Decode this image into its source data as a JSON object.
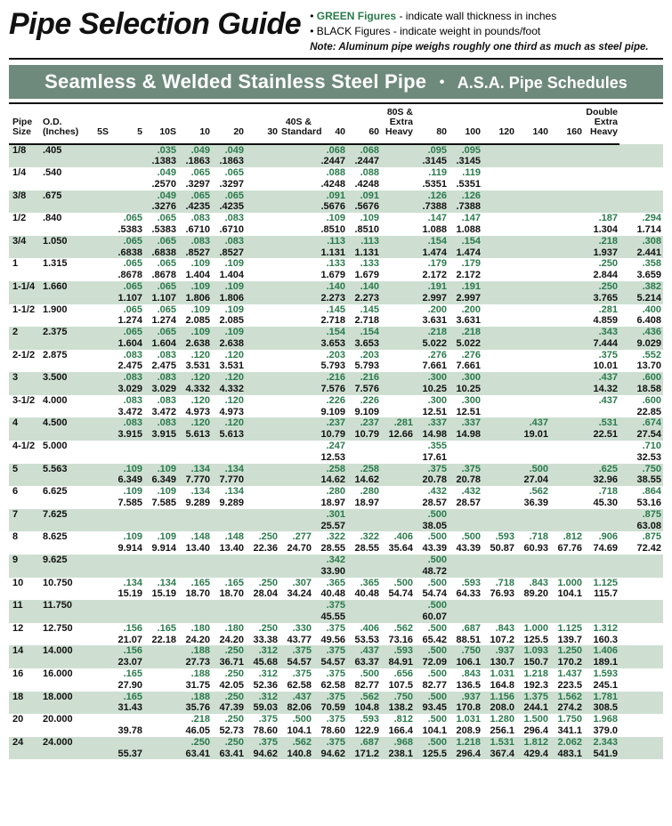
{
  "header": {
    "title": "Pipe Selection Guide",
    "bullet1_green": "GREEN Figures",
    "bullet1_rest": " - indicate wall thickness in inches",
    "bullet2_black": "BLACK Figures",
    "bullet2_rest": " - indicate weight in pounds/foot",
    "note_label": "Note:",
    "note_text": " Aluminum pipe weighs roughly one third as much as steel pipe."
  },
  "band": {
    "main": "Seamless & Welded Stainless Steel Pipe",
    "sub": "A.S.A. Pipe Schedules"
  },
  "columns": [
    "Pipe\nSize",
    "O.D.\n(Inches)",
    "5S",
    "5",
    "10S",
    "10",
    "20",
    "30",
    "40S &\nStandard",
    "40",
    "60",
    "80S &\nExtra\nHeavy",
    "80",
    "100",
    "120",
    "140",
    "160",
    "Double\nExtra\nHeavy"
  ],
  "rows": [
    {
      "size": "1/8",
      "od": ".405",
      "thk": [
        "",
        "",
        ".035",
        ".049",
        ".049",
        "",
        "",
        ".068",
        ".068",
        "",
        ".095",
        ".095",
        "",
        "",
        "",
        "",
        ""
      ],
      "wgt": [
        "",
        "",
        ".1383",
        ".1863",
        ".1863",
        "",
        "",
        ".2447",
        ".2447",
        "",
        ".3145",
        ".3145",
        "",
        "",
        "",
        "",
        ""
      ]
    },
    {
      "size": "1/4",
      "od": ".540",
      "thk": [
        "",
        "",
        ".049",
        ".065",
        ".065",
        "",
        "",
        ".088",
        ".088",
        "",
        ".119",
        ".119",
        "",
        "",
        "",
        "",
        ""
      ],
      "wgt": [
        "",
        "",
        ".2570",
        ".3297",
        ".3297",
        "",
        "",
        ".4248",
        ".4248",
        "",
        ".5351",
        ".5351",
        "",
        "",
        "",
        "",
        ""
      ]
    },
    {
      "size": "3/8",
      "od": ".675",
      "thk": [
        "",
        "",
        ".049",
        ".065",
        ".065",
        "",
        "",
        ".091",
        ".091",
        "",
        ".126",
        ".126",
        "",
        "",
        "",
        "",
        ""
      ],
      "wgt": [
        "",
        "",
        ".3276",
        ".4235",
        ".4235",
        "",
        "",
        ".5676",
        ".5676",
        "",
        ".7388",
        ".7388",
        "",
        "",
        "",
        "",
        ""
      ]
    },
    {
      "size": "1/2",
      "od": ".840",
      "thk": [
        "",
        ".065",
        ".065",
        ".083",
        ".083",
        "",
        "",
        ".109",
        ".109",
        "",
        ".147",
        ".147",
        "",
        "",
        "",
        ".187",
        ".294"
      ],
      "wgt": [
        "",
        ".5383",
        ".5383",
        ".6710",
        ".6710",
        "",
        "",
        ".8510",
        ".8510",
        "",
        "1.088",
        "1.088",
        "",
        "",
        "",
        "1.304",
        "1.714"
      ]
    },
    {
      "size": "3/4",
      "od": "1.050",
      "thk": [
        "",
        ".065",
        ".065",
        ".083",
        ".083",
        "",
        "",
        ".113",
        ".113",
        "",
        ".154",
        ".154",
        "",
        "",
        "",
        ".218",
        ".308"
      ],
      "wgt": [
        "",
        ".6838",
        ".6838",
        ".8527",
        ".8527",
        "",
        "",
        "1.131",
        "1.131",
        "",
        "1.474",
        "1.474",
        "",
        "",
        "",
        "1.937",
        "2.441"
      ]
    },
    {
      "size": "1",
      "od": "1.315",
      "thk": [
        "",
        ".065",
        ".065",
        ".109",
        ".109",
        "",
        "",
        ".133",
        ".133",
        "",
        ".179",
        ".179",
        "",
        "",
        "",
        ".250",
        ".358"
      ],
      "wgt": [
        "",
        ".8678",
        ".8678",
        "1.404",
        "1.404",
        "",
        "",
        "1.679",
        "1.679",
        "",
        "2.172",
        "2.172",
        "",
        "",
        "",
        "2.844",
        "3.659"
      ]
    },
    {
      "size": "1-1/4",
      "od": "1.660",
      "thk": [
        "",
        ".065",
        ".065",
        ".109",
        ".109",
        "",
        "",
        ".140",
        ".140",
        "",
        ".191",
        ".191",
        "",
        "",
        "",
        ".250",
        ".382"
      ],
      "wgt": [
        "",
        "1.107",
        "1.107",
        "1.806",
        "1.806",
        "",
        "",
        "2.273",
        "2.273",
        "",
        "2.997",
        "2.997",
        "",
        "",
        "",
        "3.765",
        "5.214"
      ]
    },
    {
      "size": "1-1/2",
      "od": "1.900",
      "thk": [
        "",
        ".065",
        ".065",
        ".109",
        ".109",
        "",
        "",
        ".145",
        ".145",
        "",
        ".200",
        ".200",
        "",
        "",
        "",
        ".281",
        ".400"
      ],
      "wgt": [
        "",
        "1.274",
        "1.274",
        "2.085",
        "2.085",
        "",
        "",
        "2.718",
        "2.718",
        "",
        "3.631",
        "3.631",
        "",
        "",
        "",
        "4.859",
        "6.408"
      ]
    },
    {
      "size": "2",
      "od": "2.375",
      "thk": [
        "",
        ".065",
        ".065",
        ".109",
        ".109",
        "",
        "",
        ".154",
        ".154",
        "",
        ".218",
        ".218",
        "",
        "",
        "",
        ".343",
        ".436"
      ],
      "wgt": [
        "",
        "1.604",
        "1.604",
        "2.638",
        "2.638",
        "",
        "",
        "3.653",
        "3.653",
        "",
        "5.022",
        "5.022",
        "",
        "",
        "",
        "7.444",
        "9.029"
      ]
    },
    {
      "size": "2-1/2",
      "od": "2.875",
      "thk": [
        "",
        ".083",
        ".083",
        ".120",
        ".120",
        "",
        "",
        ".203",
        ".203",
        "",
        ".276",
        ".276",
        "",
        "",
        "",
        ".375",
        ".552"
      ],
      "wgt": [
        "",
        "2.475",
        "2.475",
        "3.531",
        "3.531",
        "",
        "",
        "5.793",
        "5.793",
        "",
        "7.661",
        "7.661",
        "",
        "",
        "",
        "10.01",
        "13.70"
      ]
    },
    {
      "size": "3",
      "od": "3.500",
      "thk": [
        "",
        ".083",
        ".083",
        ".120",
        ".120",
        "",
        "",
        ".216",
        ".216",
        "",
        ".300",
        ".300",
        "",
        "",
        "",
        ".437",
        ".600"
      ],
      "wgt": [
        "",
        "3.029",
        "3.029",
        "4.332",
        "4.332",
        "",
        "",
        "7.576",
        "7.576",
        "",
        "10.25",
        "10.25",
        "",
        "",
        "",
        "14.32",
        "18.58"
      ]
    },
    {
      "size": "3-1/2",
      "od": "4.000",
      "thk": [
        "",
        ".083",
        ".083",
        ".120",
        ".120",
        "",
        "",
        ".226",
        ".226",
        "",
        ".300",
        ".300",
        "",
        "",
        "",
        ".437",
        ".600"
      ],
      "wgt": [
        "",
        "3.472",
        "3.472",
        "4.973",
        "4.973",
        "",
        "",
        "9.109",
        "9.109",
        "",
        "12.51",
        "12.51",
        "",
        "",
        "",
        "",
        "22.85"
      ]
    },
    {
      "size": "4",
      "od": "4.500",
      "thk": [
        "",
        ".083",
        ".083",
        ".120",
        ".120",
        "",
        "",
        ".237",
        ".237",
        ".281",
        ".337",
        ".337",
        "",
        ".437",
        "",
        ".531",
        ".674"
      ],
      "wgt": [
        "",
        "3.915",
        "3.915",
        "5.613",
        "5.613",
        "",
        "",
        "10.79",
        "10.79",
        "12.66",
        "14.98",
        "14.98",
        "",
        "19.01",
        "",
        "22.51",
        "27.54"
      ]
    },
    {
      "size": "4-1/2",
      "od": "5.000",
      "thk": [
        "",
        "",
        "",
        "",
        "",
        "",
        "",
        ".247",
        "",
        "",
        ".355",
        "",
        "",
        "",
        "",
        "",
        ".710"
      ],
      "wgt": [
        "",
        "",
        "",
        "",
        "",
        "",
        "",
        "12.53",
        "",
        "",
        "17.61",
        "",
        "",
        "",
        "",
        "",
        "32.53"
      ]
    },
    {
      "size": "5",
      "od": "5.563",
      "thk": [
        "",
        ".109",
        ".109",
        ".134",
        ".134",
        "",
        "",
        ".258",
        ".258",
        "",
        ".375",
        ".375",
        "",
        ".500",
        "",
        ".625",
        ".750"
      ],
      "wgt": [
        "",
        "6.349",
        "6.349",
        "7.770",
        "7.770",
        "",
        "",
        "14.62",
        "14.62",
        "",
        "20.78",
        "20.78",
        "",
        "27.04",
        "",
        "32.96",
        "38.55"
      ]
    },
    {
      "size": "6",
      "od": "6.625",
      "thk": [
        "",
        ".109",
        ".109",
        ".134",
        ".134",
        "",
        "",
        ".280",
        ".280",
        "",
        ".432",
        ".432",
        "",
        ".562",
        "",
        ".718",
        ".864"
      ],
      "wgt": [
        "",
        "7.585",
        "7.585",
        "9.289",
        "9.289",
        "",
        "",
        "18.97",
        "18.97",
        "",
        "28.57",
        "28.57",
        "",
        "36.39",
        "",
        "45.30",
        "53.16"
      ]
    },
    {
      "size": "7",
      "od": "7.625",
      "thk": [
        "",
        "",
        "",
        "",
        "",
        "",
        "",
        ".301",
        "",
        "",
        ".500",
        "",
        "",
        "",
        "",
        "",
        ".875"
      ],
      "wgt": [
        "",
        "",
        "",
        "",
        "",
        "",
        "",
        "25.57",
        "",
        "",
        "38.05",
        "",
        "",
        "",
        "",
        "",
        "63.08"
      ]
    },
    {
      "size": "8",
      "od": "8.625",
      "thk": [
        "",
        ".109",
        ".109",
        ".148",
        ".148",
        ".250",
        ".277",
        ".322",
        ".322",
        ".406",
        ".500",
        ".500",
        ".593",
        ".718",
        ".812",
        ".906",
        ".875"
      ],
      "wgt": [
        "",
        "9.914",
        "9.914",
        "13.40",
        "13.40",
        "22.36",
        "24.70",
        "28.55",
        "28.55",
        "35.64",
        "43.39",
        "43.39",
        "50.87",
        "60.93",
        "67.76",
        "74.69",
        "72.42"
      ]
    },
    {
      "size": "9",
      "od": "9.625",
      "thk": [
        "",
        "",
        "",
        "",
        "",
        "",
        "",
        ".342",
        "",
        "",
        ".500",
        "",
        "",
        "",
        "",
        "",
        ""
      ],
      "wgt": [
        "",
        "",
        "",
        "",
        "",
        "",
        "",
        "33.90",
        "",
        "",
        "48.72",
        "",
        "",
        "",
        "",
        "",
        ""
      ]
    },
    {
      "size": "10",
      "od": "10.750",
      "thk": [
        "",
        ".134",
        ".134",
        ".165",
        ".165",
        ".250",
        ".307",
        ".365",
        ".365",
        ".500",
        ".500",
        ".593",
        ".718",
        ".843",
        "1.000",
        "1.125",
        ""
      ],
      "wgt": [
        "",
        "15.19",
        "15.19",
        "18.70",
        "18.70",
        "28.04",
        "34.24",
        "40.48",
        "40.48",
        "54.74",
        "54.74",
        "64.33",
        "76.93",
        "89.20",
        "104.1",
        "115.7",
        ""
      ]
    },
    {
      "size": "11",
      "od": "11.750",
      "thk": [
        "",
        "",
        "",
        "",
        "",
        "",
        "",
        ".375",
        "",
        "",
        ".500",
        "",
        "",
        "",
        "",
        "",
        ""
      ],
      "wgt": [
        "",
        "",
        "",
        "",
        "",
        "",
        "",
        "45.55",
        "",
        "",
        "60.07",
        "",
        "",
        "",
        "",
        "",
        ""
      ]
    },
    {
      "size": "12",
      "od": "12.750",
      "thk": [
        "",
        ".156",
        ".165",
        ".180",
        ".180",
        ".250",
        ".330",
        ".375",
        ".406",
        ".562",
        ".500",
        ".687",
        ".843",
        "1.000",
        "1.125",
        "1.312",
        ""
      ],
      "wgt": [
        "",
        "21.07",
        "22.18",
        "24.20",
        "24.20",
        "33.38",
        "43.77",
        "49.56",
        "53.53",
        "73.16",
        "65.42",
        "88.51",
        "107.2",
        "125.5",
        "139.7",
        "160.3",
        ""
      ]
    },
    {
      "size": "14",
      "od": "14.000",
      "thk": [
        "",
        ".156",
        "",
        ".188",
        ".250",
        ".312",
        ".375",
        ".375",
        ".437",
        ".593",
        ".500",
        ".750",
        ".937",
        "1.093",
        "1.250",
        "1.406",
        ""
      ],
      "wgt": [
        "",
        "23.07",
        "",
        "27.73",
        "36.71",
        "45.68",
        "54.57",
        "54.57",
        "63.37",
        "84.91",
        "72.09",
        "106.1",
        "130.7",
        "150.7",
        "170.2",
        "189.1",
        ""
      ]
    },
    {
      "size": "16",
      "od": "16.000",
      "thk": [
        "",
        ".165",
        "",
        ".188",
        ".250",
        ".312",
        ".375",
        ".375",
        ".500",
        ".656",
        ".500",
        ".843",
        "1.031",
        "1.218",
        "1.437",
        "1.593",
        ""
      ],
      "wgt": [
        "",
        "27.90",
        "",
        "31.75",
        "42.05",
        "52.36",
        "62.58",
        "62.58",
        "82.77",
        "107.5",
        "82.77",
        "136.5",
        "164.8",
        "192.3",
        "223.5",
        "245.1",
        ""
      ]
    },
    {
      "size": "18",
      "od": "18.000",
      "thk": [
        "",
        ".165",
        "",
        ".188",
        ".250",
        ".312",
        ".437",
        ".375",
        ".562",
        ".750",
        ".500",
        ".937",
        "1.156",
        "1.375",
        "1.562",
        "1.781",
        ""
      ],
      "wgt": [
        "",
        "31.43",
        "",
        "35.76",
        "47.39",
        "59.03",
        "82.06",
        "70.59",
        "104.8",
        "138.2",
        "93.45",
        "170.8",
        "208.0",
        "244.1",
        "274.2",
        "308.5",
        ""
      ]
    },
    {
      "size": "20",
      "od": "20.000",
      "thk": [
        "",
        "",
        "",
        ".218",
        ".250",
        ".375",
        ".500",
        ".375",
        ".593",
        ".812",
        ".500",
        "1.031",
        "1.280",
        "1.500",
        "1.750",
        "1.968",
        ""
      ],
      "wgt": [
        "",
        "39.78",
        "",
        "46.05",
        "52.73",
        "78.60",
        "104.1",
        "78.60",
        "122.9",
        "166.4",
        "104.1",
        "208.9",
        "256.1",
        "296.4",
        "341.1",
        "379.0",
        ""
      ]
    },
    {
      "size": "24",
      "od": "24.000",
      "thk": [
        "",
        "",
        "",
        ".250",
        ".250",
        ".375",
        ".562",
        ".375",
        ".687",
        ".968",
        ".500",
        "1.218",
        "1.531",
        "1.812",
        "2.062",
        "2.343",
        ""
      ],
      "wgt": [
        "",
        "55.37",
        "",
        "63.41",
        "63.41",
        "94.62",
        "140.8",
        "94.62",
        "171.2",
        "238.1",
        "125.5",
        "296.4",
        "367.4",
        "429.4",
        "483.1",
        "541.9",
        ""
      ]
    }
  ]
}
